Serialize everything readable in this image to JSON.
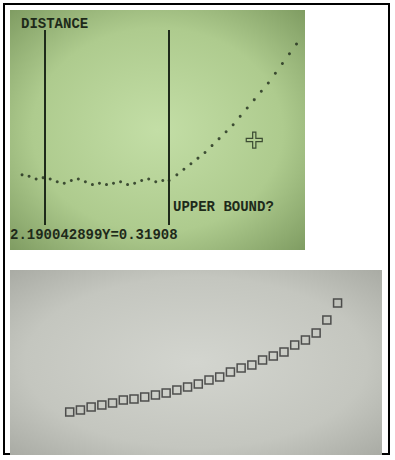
{
  "chart_data": [
    {
      "type": "scatter",
      "title": "DISTANCE",
      "annotations": [
        "2.190042899",
        "Y=0.31908",
        "UPPER BOUND?"
      ],
      "x": [
        0.1,
        0.2,
        0.3,
        0.4,
        0.5,
        0.6,
        0.7,
        0.8,
        0.9,
        1.0,
        1.1,
        1.2,
        1.3,
        1.4,
        1.5,
        1.6,
        1.7,
        1.8,
        1.9,
        2.0,
        2.1,
        2.190042899,
        2.3,
        2.4,
        2.5,
        2.6,
        2.7,
        2.8,
        2.9,
        3.0,
        3.1,
        3.2,
        3.3,
        3.4,
        3.5,
        3.6,
        3.7,
        3.8,
        3.9,
        4.0
      ],
      "values": [
        0.36,
        0.35,
        0.33,
        0.34,
        0.33,
        0.31,
        0.3,
        0.32,
        0.33,
        0.31,
        0.29,
        0.3,
        0.29,
        0.3,
        0.31,
        0.29,
        0.3,
        0.32,
        0.33,
        0.31,
        0.32,
        0.31908,
        0.36,
        0.4,
        0.44,
        0.48,
        0.52,
        0.57,
        0.62,
        0.67,
        0.72,
        0.78,
        0.84,
        0.9,
        0.96,
        1.02,
        1.09,
        1.16,
        1.23,
        1.3
      ],
      "color": "#1e2a1a",
      "marker": "dot",
      "xlim": [
        0,
        4.05
      ],
      "ylim": [
        0,
        1.4
      ],
      "tick_labels": false,
      "bounds": [
        0.42,
        2.190042899
      ],
      "cursor": {
        "x": 3.4,
        "y": 0.61
      }
    },
    {
      "type": "scatter",
      "x": [
        1,
        2,
        3,
        4,
        5,
        6,
        7,
        8,
        9,
        10,
        11,
        12,
        13,
        14,
        15,
        16,
        17,
        18,
        19,
        20,
        21,
        22,
        23,
        24,
        25,
        26
      ],
      "values": [
        1.8,
        2.0,
        2.3,
        2.5,
        2.7,
        3.0,
        3.1,
        3.3,
        3.5,
        3.7,
        4.0,
        4.3,
        4.6,
        5.0,
        5.3,
        5.8,
        6.2,
        6.5,
        7.0,
        7.4,
        7.8,
        8.5,
        9.0,
        9.7,
        11.0,
        12.7
      ],
      "color": "#2e2e2e",
      "marker": "square",
      "xlim": [
        0,
        28
      ],
      "ylim": [
        0,
        14
      ],
      "tick_labels": false
    }
  ]
}
